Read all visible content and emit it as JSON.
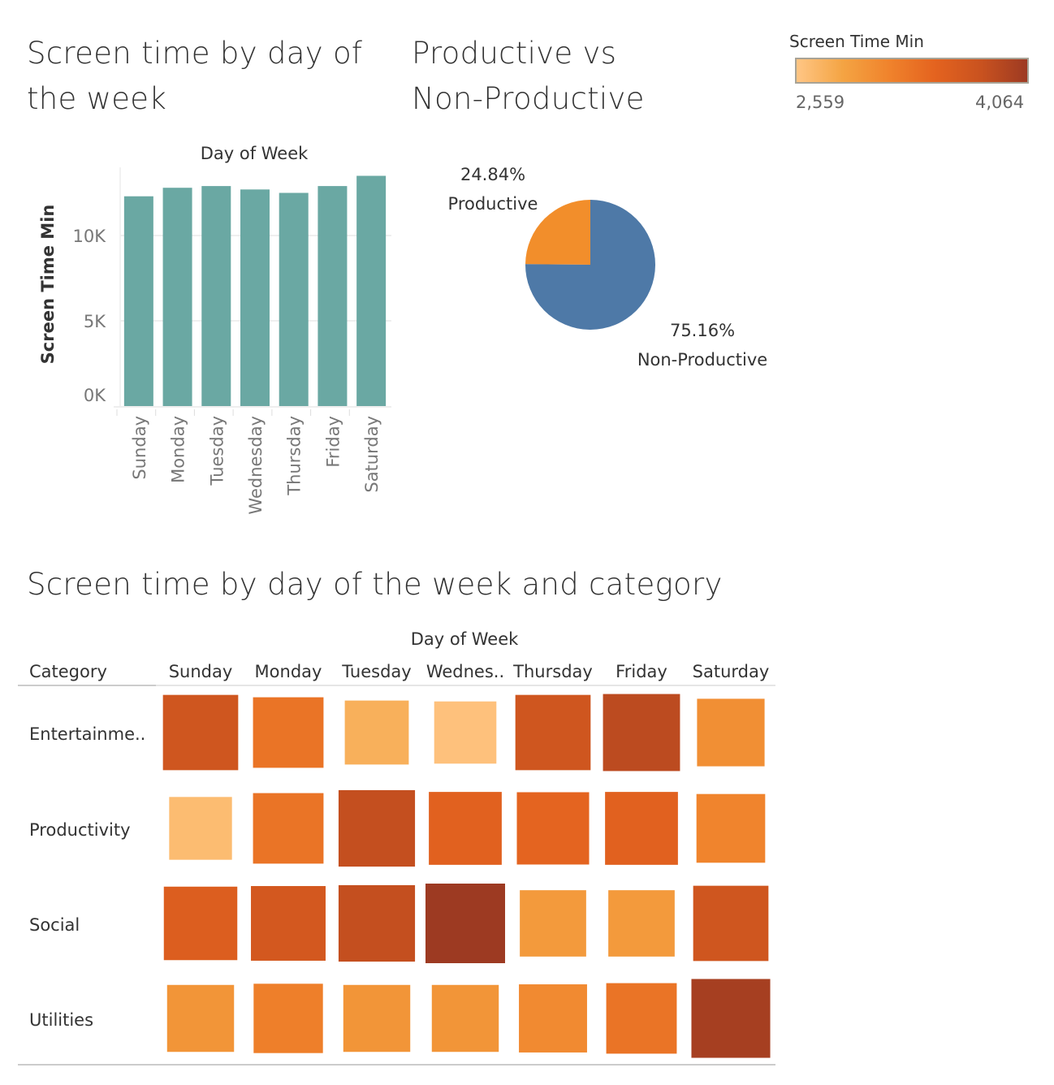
{
  "titles": {
    "bar": "Screen time by day of the week",
    "pie": "Productive vs Non-Productive",
    "heatmap": "Screen time by day of the week and category"
  },
  "legend": {
    "title": "Screen Time Min",
    "min_label": "2,559",
    "max_label": "4,064",
    "colors": [
      "#ffc685",
      "#f4a443",
      "#f0832c",
      "#e4631f",
      "#c9521f",
      "#9d3a22"
    ]
  },
  "chart_data": [
    {
      "type": "bar",
      "title": "Screen time by day of the week",
      "xlabel": "Day of Week",
      "ylabel": "Screen Time Min",
      "categories": [
        "Sunday",
        "Monday",
        "Tuesday",
        "Wednesday",
        "Thursday",
        "Friday",
        "Saturday"
      ],
      "values": [
        12300,
        12800,
        12900,
        12700,
        12500,
        12900,
        13500
      ],
      "ylim": [
        0,
        14000
      ],
      "yticks": [
        {
          "value": 0,
          "label": "0K"
        },
        {
          "value": 5000,
          "label": "5K"
        },
        {
          "value": 10000,
          "label": "10K"
        }
      ],
      "color": "#6aa8a3",
      "grid": true
    },
    {
      "type": "pie",
      "title": "Productive vs Non-Productive",
      "slices": [
        {
          "name": "Productive",
          "percent": 24.84,
          "label": "24.84%",
          "color": "#f28e2b"
        },
        {
          "name": "Non-Productive",
          "percent": 75.16,
          "label": "75.16%",
          "color": "#4e79a7"
        }
      ]
    },
    {
      "type": "heatmap",
      "title": "Screen time by day of the week and category",
      "xlabel": "Day of Week",
      "row_header": "Category",
      "columns": [
        "Sunday",
        "Monday",
        "Tuesday",
        "Wednes..",
        "Thursday",
        "Friday",
        "Saturday"
      ],
      "rows": [
        "Entertainme..",
        "Productivity",
        "Social",
        "Utilities"
      ],
      "values": [
        [
          3700,
          3300,
          2750,
          2600,
          3700,
          3850,
          3050
        ],
        [
          2650,
          3300,
          3800,
          3500,
          3450,
          3500,
          3150
        ],
        [
          3550,
          3650,
          3800,
          4064,
          2950,
          2950,
          3700
        ],
        [
          3000,
          3200,
          3000,
          3000,
          3100,
          3300,
          4000
        ]
      ],
      "color_range": [
        2559,
        4064
      ]
    }
  ]
}
